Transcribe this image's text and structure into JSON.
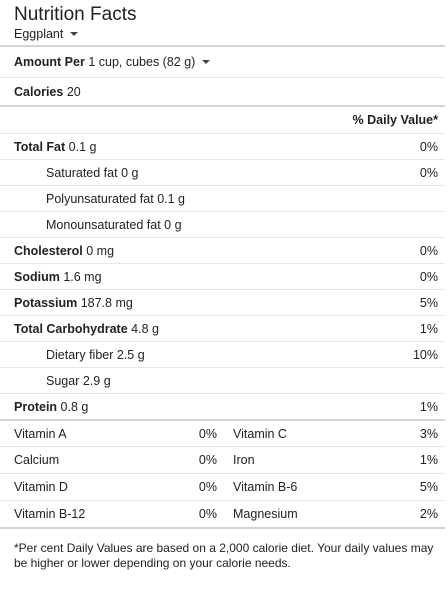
{
  "header": {
    "title": "Nutrition Facts",
    "food": "Eggplant"
  },
  "amount": {
    "label": "Amount Per",
    "serving": "1 cup, cubes (82 g)"
  },
  "calories": {
    "label": "Calories",
    "value": "20"
  },
  "dv_header": "% Daily Value*",
  "nutrients": [
    {
      "label": "Total Fat",
      "amount": "0.1 g",
      "dv": "0%"
    },
    {
      "label": "Saturated fat",
      "amount": "0 g",
      "dv": "0%"
    },
    {
      "label": "Polyunsaturated fat",
      "amount": "0.1 g",
      "dv": ""
    },
    {
      "label": "Monounsaturated fat",
      "amount": "0 g",
      "dv": ""
    },
    {
      "label": "Cholesterol",
      "amount": "0 mg",
      "dv": "0%"
    },
    {
      "label": "Sodium",
      "amount": "1.6 mg",
      "dv": "0%"
    },
    {
      "label": "Potassium",
      "amount": "187.8 mg",
      "dv": "5%"
    },
    {
      "label": "Total Carbohydrate",
      "amount": "4.8 g",
      "dv": "1%"
    },
    {
      "label": "Dietary fiber",
      "amount": "2.5 g",
      "dv": "10%"
    },
    {
      "label": "Sugar",
      "amount": "2.9 g",
      "dv": ""
    },
    {
      "label": "Protein",
      "amount": "0.8 g",
      "dv": "1%"
    }
  ],
  "vitamins": [
    {
      "left_label": "Vitamin A",
      "left_dv": "0%",
      "right_label": "Vitamin C",
      "right_dv": "3%"
    },
    {
      "left_label": "Calcium",
      "left_dv": "0%",
      "right_label": "Iron",
      "right_dv": "1%"
    },
    {
      "left_label": "Vitamin D",
      "left_dv": "0%",
      "right_label": "Vitamin B-6",
      "right_dv": "5%"
    },
    {
      "left_label": "Vitamin B-12",
      "left_dv": "0%",
      "right_label": "Magnesium",
      "right_dv": "2%"
    }
  ],
  "footnote": "*Per cent Daily Values are based on a 2,000 calorie diet. Your daily values may be higher or lower depending on your calorie needs.",
  "icons": {
    "dropdown": "chevron-down-icon"
  },
  "colors": {
    "divider_light": "#e6e6e6",
    "divider_thick": "#d4d4d4",
    "text": "#222222"
  }
}
